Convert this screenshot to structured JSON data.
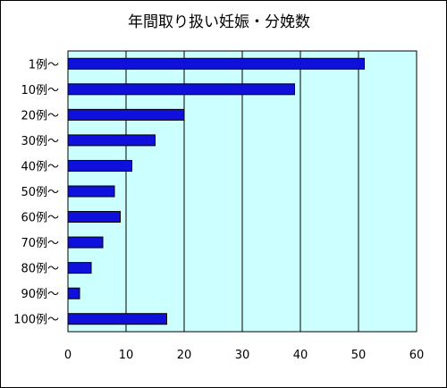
{
  "chart_data": {
    "type": "bar",
    "orientation": "horizontal",
    "title": "年間取り扱い妊娠・分娩数",
    "categories": [
      "1例〜",
      "10例〜",
      "20例〜",
      "30例〜",
      "40例〜",
      "50例〜",
      "60例〜",
      "70例〜",
      "80例〜",
      "90例〜",
      "100例〜"
    ],
    "values": [
      51,
      39,
      20,
      15,
      11,
      8,
      9,
      6,
      4,
      2,
      17
    ],
    "xlim": [
      0,
      60
    ],
    "xticks": [
      0,
      10,
      20,
      30,
      40,
      50,
      60
    ],
    "xlabel": "",
    "ylabel": "",
    "grid": "vertical",
    "legend": "none",
    "colors": {
      "bar": "#1010dd",
      "plot_background": "#ccffff",
      "gridline": "#000000"
    }
  }
}
